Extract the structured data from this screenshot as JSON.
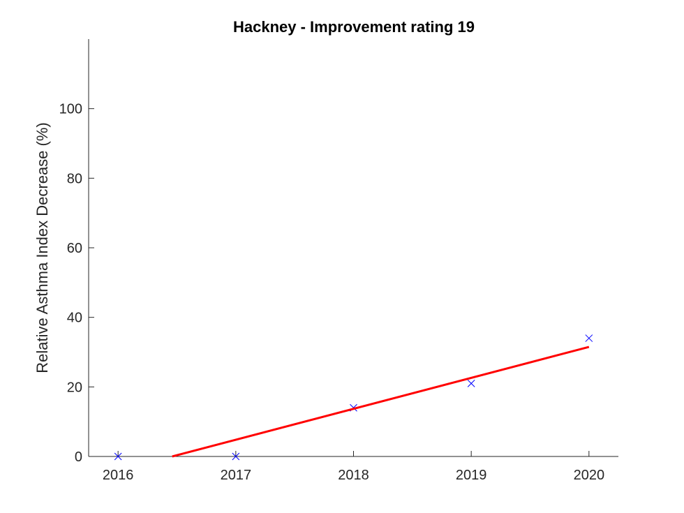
{
  "chart_data": {
    "type": "scatter",
    "title": "Hackney - Improvement rating 19",
    "xlabel": "",
    "ylabel": "Relative Asthma Index Decrease (%)",
    "xlim": [
      2015.75,
      2020.25
    ],
    "ylim": [
      0,
      120
    ],
    "xticks": [
      2016,
      2017,
      2018,
      2019,
      2020
    ],
    "yticks": [
      0,
      20,
      40,
      60,
      80,
      100
    ],
    "grid": false,
    "series": [
      {
        "kind": "markers",
        "marker": "x",
        "color": "#0000ff",
        "x": [
          2016,
          2017,
          2018,
          2019,
          2020
        ],
        "y": [
          0,
          0,
          14,
          21,
          34
        ]
      },
      {
        "kind": "line",
        "color": "#ff0000",
        "x": [
          2016.46,
          2020
        ],
        "y": [
          0,
          31.5
        ]
      }
    ]
  }
}
